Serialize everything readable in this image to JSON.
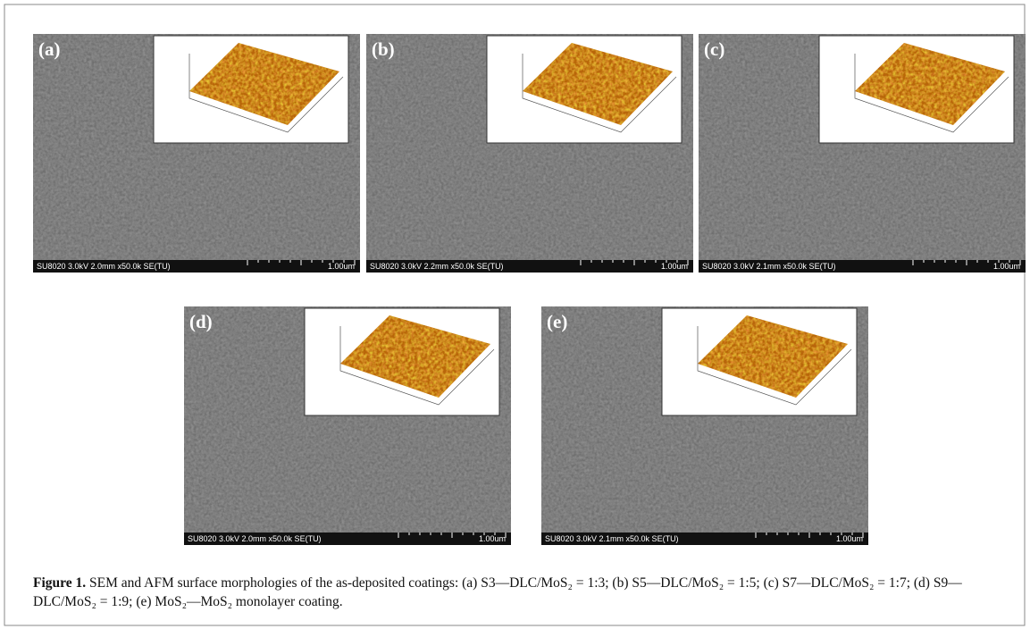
{
  "figure": {
    "panels": [
      {
        "label": "(a)",
        "info": "SU8020 3.0kV 2.0mm x50.0k SE(TU)",
        "scale": "1.00um"
      },
      {
        "label": "(b)",
        "info": "SU8020 3.0kV 2.2mm x50.0k SE(TU)",
        "scale": "1.00um"
      },
      {
        "label": "(c)",
        "info": "SU8020 3.0kV 2.1mm x50.0k SE(TU)",
        "scale": "1.00um"
      },
      {
        "label": "(d)",
        "info": "SU8020 3.0kV 2.0mm x50.0k SE(TU)",
        "scale": "1.00um"
      },
      {
        "label": "(e)",
        "info": "SU8020 3.0kV 2.1mm x50.0k SE(TU)",
        "scale": "1.00um"
      }
    ],
    "caption": {
      "label": "Figure 1.",
      "text": "SEM and AFM surface morphologies of the as-deposited coatings: (a) S3—DLC/MoS₂ = 1:3; (b) S5—DLC/MoS₂ = 1:5; (c) S7—DLC/MoS₂ = 1:7; (d) S9—DLC/MoS₂ = 1:9; (e) MoS₂—MoS₂ monolayer coating."
    }
  }
}
